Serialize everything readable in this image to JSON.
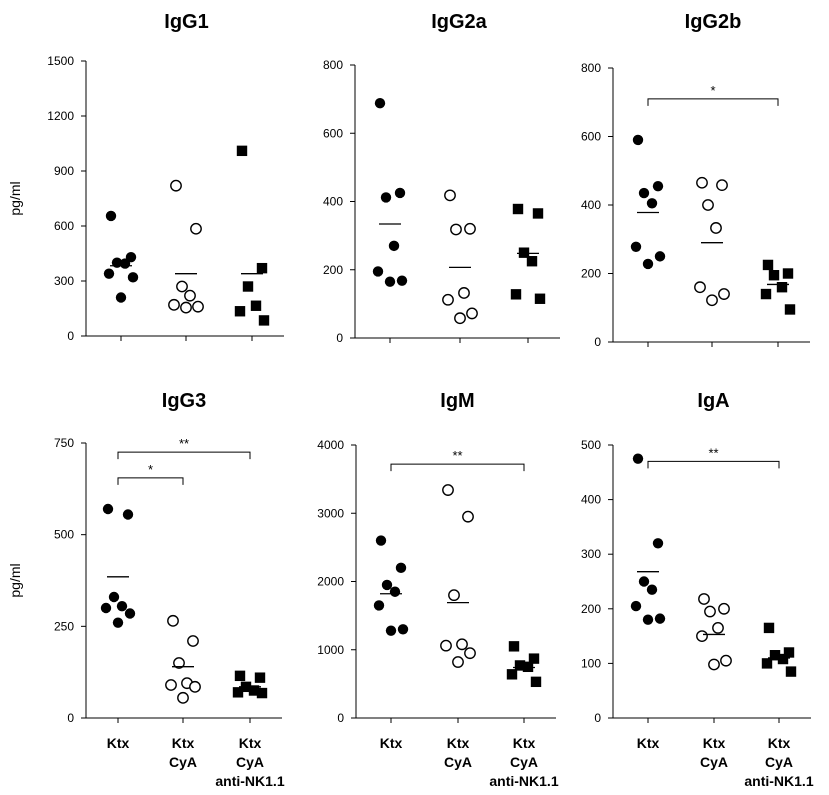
{
  "y_axis_label": "pg/ml",
  "chart_data": [
    {
      "type": "scatter",
      "title": "IgG1",
      "ylabel": "pg/ml",
      "ylim": [
        0,
        1500
      ],
      "yticks": [
        "0",
        "300",
        "600",
        "900",
        "1200",
        "1500"
      ],
      "categories": [],
      "series": [
        {
          "name": "Ktx",
          "marker": "filled-circle",
          "values": [
            655,
            430,
            400,
            395,
            340,
            320,
            210
          ],
          "mean": 383
        },
        {
          "name": "Ktx CyA",
          "marker": "open-circle",
          "values": [
            820,
            585,
            270,
            220,
            170,
            160,
            155
          ],
          "mean": 340
        },
        {
          "name": "Ktx CyA anti-NK1.1",
          "marker": "filled-square",
          "values": [
            1010,
            370,
            270,
            165,
            135,
            85
          ],
          "mean": 340
        }
      ],
      "significance": []
    },
    {
      "type": "scatter",
      "title": "IgG2a",
      "ylabel": "",
      "ylim": [
        0,
        800
      ],
      "yticks": [
        "0",
        "200",
        "400",
        "600",
        "800"
      ],
      "categories": [],
      "series": [
        {
          "name": "Ktx",
          "marker": "filled-circle",
          "values": [
            688,
            425,
            412,
            270,
            195,
            168,
            165
          ],
          "mean": 334
        },
        {
          "name": "Ktx CyA",
          "marker": "open-circle",
          "values": [
            418,
            320,
            318,
            132,
            112,
            72,
            58
          ],
          "mean": 207
        },
        {
          "name": "Ktx CyA anti-NK1.1",
          "marker": "filled-square",
          "values": [
            378,
            365,
            250,
            225,
            128,
            115
          ],
          "mean": 248
        }
      ],
      "significance": []
    },
    {
      "type": "scatter",
      "title": "IgG2b",
      "ylabel": "",
      "ylim": [
        0,
        800
      ],
      "yticks": [
        "0",
        "200",
        "400",
        "600",
        "800"
      ],
      "categories": [],
      "series": [
        {
          "name": "Ktx",
          "marker": "filled-circle",
          "values": [
            590,
            455,
            435,
            405,
            278,
            250,
            228
          ],
          "mean": 378
        },
        {
          "name": "Ktx CyA",
          "marker": "open-circle",
          "values": [
            465,
            458,
            400,
            333,
            160,
            140,
            122
          ],
          "mean": 290
        },
        {
          "name": "Ktx CyA anti-NK1.1",
          "marker": "filled-square",
          "values": [
            225,
            200,
            195,
            160,
            140,
            95
          ],
          "mean": 168
        }
      ],
      "significance": [
        {
          "from": 0,
          "to": 2,
          "label": "*",
          "level": 710
        }
      ]
    },
    {
      "type": "scatter",
      "title": "IgG3",
      "ylabel": "pg/ml",
      "ylim": [
        0,
        750
      ],
      "yticks": [
        "0",
        "250",
        "500",
        "750"
      ],
      "categories": [
        "Ktx",
        "Ktx\nCyA",
        "Ktx\nCyA\nanti-NK1.1"
      ],
      "series": [
        {
          "name": "Ktx",
          "marker": "filled-circle",
          "values": [
            570,
            555,
            330,
            305,
            300,
            285,
            260
          ],
          "mean": 385
        },
        {
          "name": "Ktx CyA",
          "marker": "open-circle",
          "values": [
            265,
            210,
            150,
            95,
            90,
            85,
            55
          ],
          "mean": 140
        },
        {
          "name": "Ktx CyA anti-NK1.1",
          "marker": "filled-square",
          "values": [
            115,
            110,
            85,
            75,
            70,
            68
          ],
          "mean": 85
        }
      ],
      "significance": [
        {
          "from": 0,
          "to": 1,
          "label": "*",
          "level": 655
        },
        {
          "from": 0,
          "to": 2,
          "label": "**",
          "level": 725
        }
      ]
    },
    {
      "type": "scatter",
      "title": "IgM",
      "ylabel": "",
      "ylim": [
        0,
        4000
      ],
      "yticks": [
        "0",
        "1000",
        "2000",
        "3000",
        "4000"
      ],
      "categories": [
        "Ktx",
        "Ktx\nCyA",
        "Ktx\nCyA\nanti-NK1.1"
      ],
      "series": [
        {
          "name": "Ktx",
          "marker": "filled-circle",
          "values": [
            2600,
            2200,
            1950,
            1850,
            1650,
            1300,
            1280
          ],
          "mean": 1820
        },
        {
          "name": "Ktx CyA",
          "marker": "open-circle",
          "values": [
            3340,
            2950,
            1800,
            1080,
            1060,
            950,
            820
          ],
          "mean": 1690
        },
        {
          "name": "Ktx CyA anti-NK1.1",
          "marker": "filled-square",
          "values": [
            1050,
            870,
            770,
            750,
            640,
            530
          ],
          "mean": 740
        }
      ],
      "significance": [
        {
          "from": 0,
          "to": 2,
          "label": "**",
          "level": 3720
        }
      ]
    },
    {
      "type": "scatter",
      "title": "IgA",
      "ylabel": "",
      "ylim": [
        0,
        500
      ],
      "yticks": [
        "0",
        "100",
        "200",
        "300",
        "400",
        "500"
      ],
      "categories": [
        "Ktx",
        "Ktx\nCyA",
        "Ktx\nCyA\nanti-NK1.1"
      ],
      "series": [
        {
          "name": "Ktx",
          "marker": "filled-circle",
          "values": [
            475,
            320,
            250,
            235,
            205,
            182,
            180
          ],
          "mean": 268
        },
        {
          "name": "Ktx CyA",
          "marker": "open-circle",
          "values": [
            218,
            200,
            195,
            165,
            150,
            105,
            98
          ],
          "mean": 153
        },
        {
          "name": "Ktx CyA anti-NK1.1",
          "marker": "filled-square",
          "values": [
            165,
            120,
            115,
            108,
            100,
            85
          ],
          "mean": 110
        }
      ],
      "significance": [
        {
          "from": 0,
          "to": 2,
          "label": "**",
          "level": 470
        }
      ]
    }
  ]
}
